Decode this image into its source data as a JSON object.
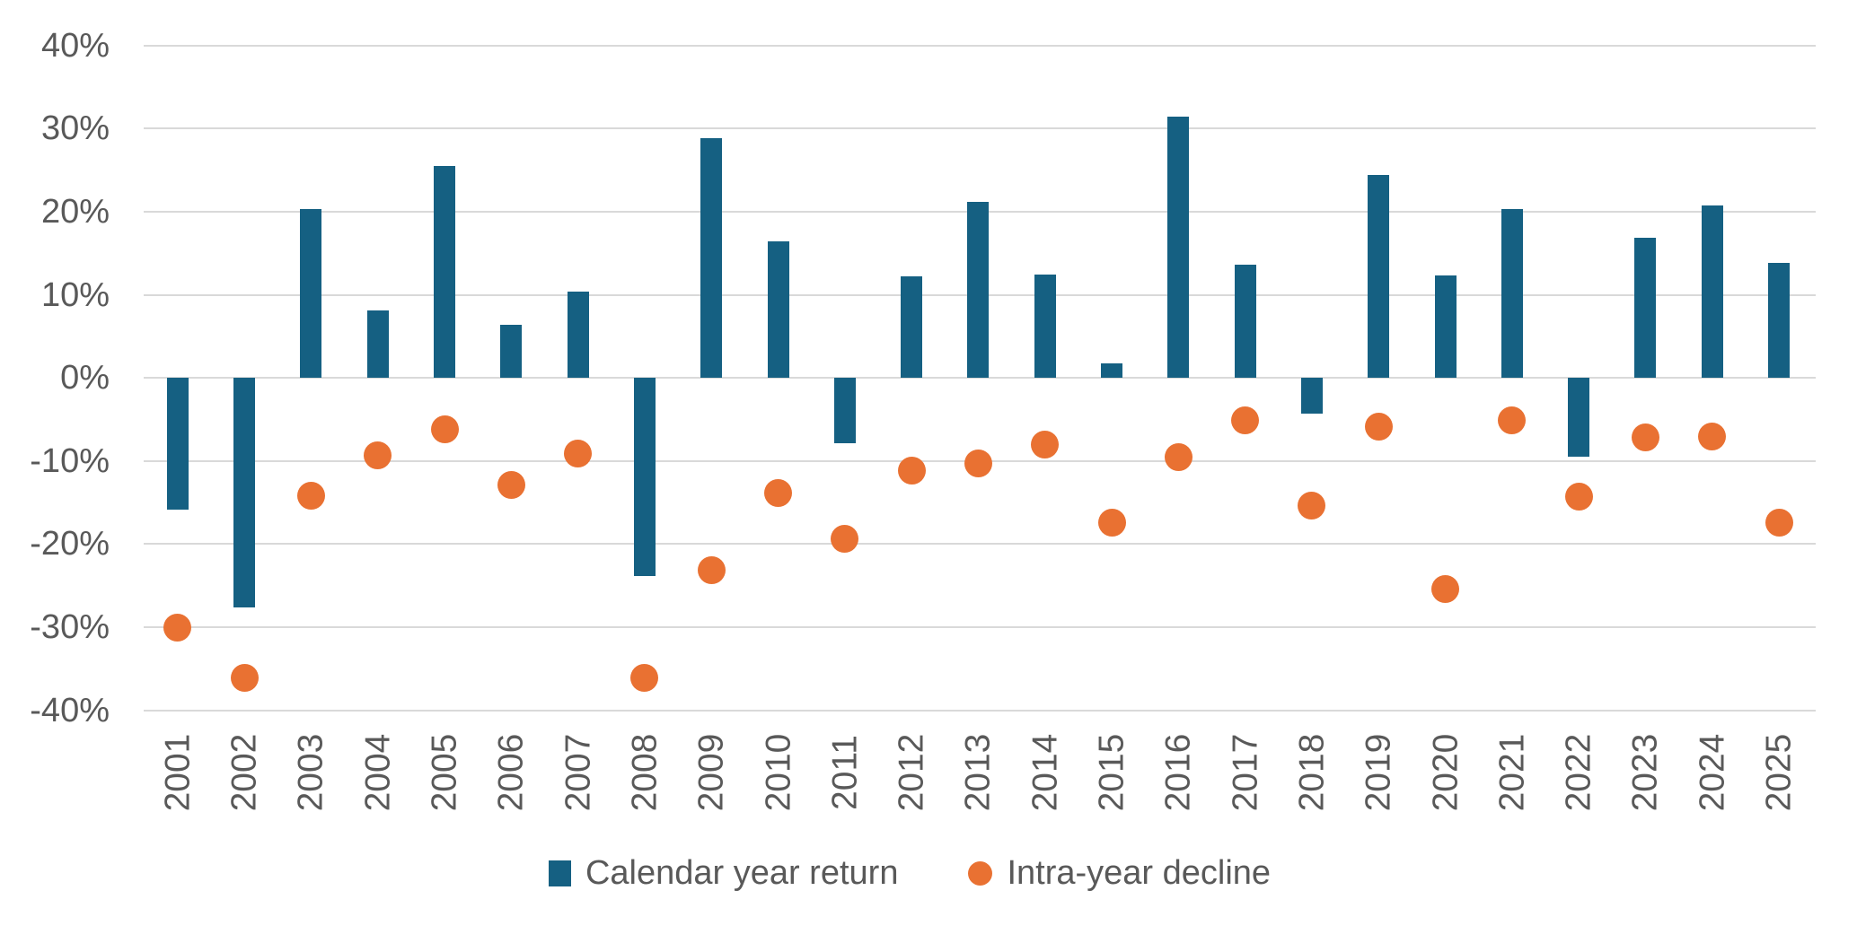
{
  "chart_data": {
    "type": "bar",
    "subtype": "combo-bar-scatter",
    "title": "",
    "xlabel": "",
    "ylabel": "",
    "categories": [
      "2001",
      "2002",
      "2003",
      "2004",
      "2005",
      "2006",
      "2007",
      "2008",
      "2009",
      "2010",
      "2011",
      "2012",
      "2013",
      "2014",
      "2015",
      "2016",
      "2017",
      "2018",
      "2019",
      "2020",
      "2021",
      "2022",
      "2023",
      "2024",
      "2025"
    ],
    "series": [
      {
        "name": "Calendar year return",
        "type": "bar",
        "color": "#156082",
        "values": [
          -15.9,
          -27.6,
          20.3,
          8.1,
          25.5,
          6.4,
          10.4,
          -23.8,
          28.8,
          16.4,
          -7.9,
          12.2,
          21.2,
          12.4,
          1.8,
          31.4,
          13.6,
          -4.3,
          24.4,
          12.3,
          20.3,
          -9.5,
          16.9,
          20.8,
          13.8
        ]
      },
      {
        "name": "Intra-year decline",
        "type": "scatter",
        "color": "#E97132",
        "values": [
          -30.0,
          -36.1,
          -14.2,
          -9.3,
          -6.2,
          -12.9,
          -9.1,
          -36.1,
          -23.1,
          -13.9,
          -19.4,
          -11.1,
          -10.3,
          -8.0,
          -17.4,
          -9.5,
          -5.1,
          -15.4,
          -5.9,
          -25.4,
          -5.1,
          -14.3,
          -7.2,
          -7.0,
          -17.4
        ]
      }
    ],
    "ylim": [
      -40,
      40
    ],
    "ytick_values": [
      40,
      30,
      20,
      10,
      0,
      -10,
      -20,
      -30,
      -40
    ],
    "ytick_labels": [
      "40%",
      "30%",
      "20%",
      "10%",
      "0%",
      "-10%",
      "-20%",
      "-30%",
      "-40%"
    ],
    "grid": true,
    "gridline_color": "#D9D9D9",
    "text_color": "#595959",
    "background": "#FFFFFF",
    "legend_position": "bottom"
  }
}
